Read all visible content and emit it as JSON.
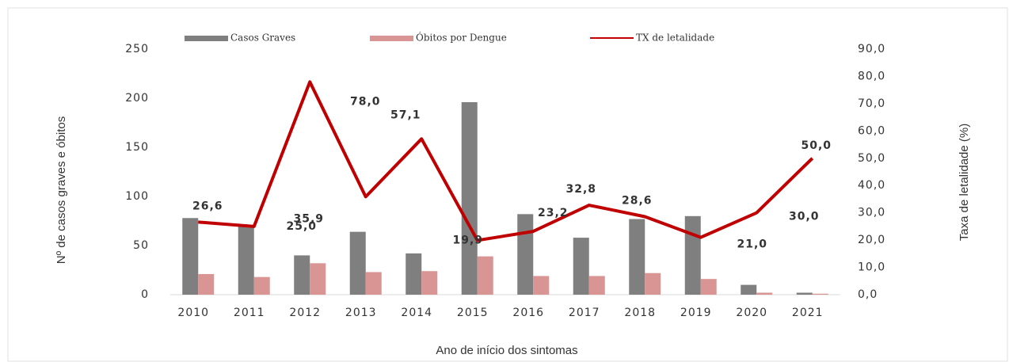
{
  "chart_data": {
    "type": "bar-line",
    "categories": [
      "2010",
      "2011",
      "2012",
      "2013",
      "2014",
      "2015",
      "2016",
      "2017",
      "2018",
      "2019",
      "2020",
      "2021"
    ],
    "xlabel": "Ano de início dos sintomas",
    "ylabel": "Nº de casos graves e óbitos",
    "y2label": "Taxa de letalidade (%)",
    "ylim": [
      0,
      250
    ],
    "yticks": [
      0,
      50,
      100,
      150,
      200,
      250
    ],
    "y2lim": [
      0,
      90
    ],
    "y2ticks": [
      {
        "value": 0,
        "label": "0,0"
      },
      {
        "value": 10,
        "label": "10,0"
      },
      {
        "value": 20,
        "label": "20,0"
      },
      {
        "value": 30,
        "label": "30,0"
      },
      {
        "value": 40,
        "label": "40,0"
      },
      {
        "value": 50,
        "label": "50,0"
      },
      {
        "value": 60,
        "label": "60,0"
      },
      {
        "value": 70,
        "label": "70,0"
      },
      {
        "value": 80,
        "label": "80,0"
      },
      {
        "value": 90,
        "label": "90,0"
      }
    ],
    "series": [
      {
        "name": "Casos Graves",
        "color": "#7f7f7f",
        "values": [
          78,
          70,
          40,
          64,
          42,
          196,
          82,
          58,
          77,
          80,
          10,
          2
        ]
      },
      {
        "name": "Óbitos por Dengue",
        "color": "#d99594",
        "values": [
          21,
          18,
          32,
          23,
          24,
          39,
          19,
          19,
          22,
          16,
          2,
          1
        ]
      },
      {
        "name": "TX de letalidade",
        "color": "#c00000",
        "axis": "y2",
        "values": [
          26.6,
          25.0,
          78.0,
          35.9,
          57.1,
          19.9,
          23.2,
          32.8,
          28.6,
          21.0,
          30.0,
          50.0
        ],
        "value_labels": [
          "26,6",
          "25,0",
          "78,0",
          "35,9",
          "57,1",
          "19,9",
          "23,2",
          "32,8",
          "28,6",
          "21,0",
          "30,0",
          "50,0"
        ]
      }
    ],
    "legend": "top"
  }
}
